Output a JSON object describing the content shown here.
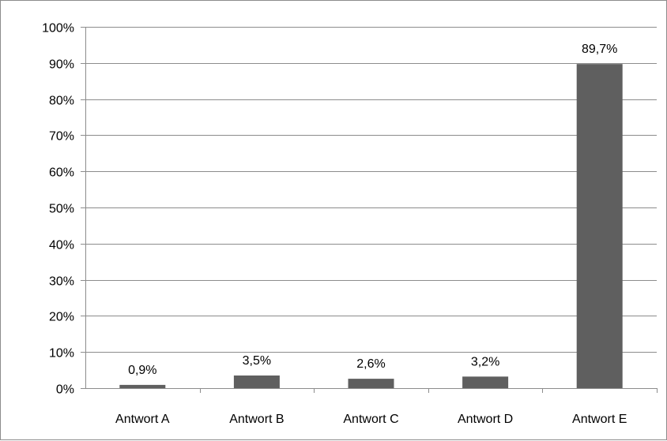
{
  "chart_data": {
    "type": "bar",
    "categories": [
      "Antwort A",
      "Antwort B",
      "Antwort C",
      "Antwort D",
      "Antwort E"
    ],
    "values": [
      0.9,
      3.5,
      2.6,
      3.2,
      89.7
    ],
    "data_labels": [
      "0,9%",
      "3,5%",
      "2,6%",
      "3,2%",
      "89,7%"
    ],
    "y_ticks": [
      0,
      10,
      20,
      30,
      40,
      50,
      60,
      70,
      80,
      90,
      100
    ],
    "y_tick_labels": [
      "0%",
      "10%",
      "20%",
      "30%",
      "40%",
      "50%",
      "60%",
      "70%",
      "80%",
      "90%",
      "100%"
    ],
    "ylim": [
      0,
      100
    ],
    "grid": true,
    "legend": "none",
    "title": "",
    "xlabel": "",
    "ylabel": "",
    "colors": {
      "bar": "#5f5f5f",
      "grid": "#8c8c8c",
      "axis": "#8c8c8c",
      "frame": "#8c8c8c"
    }
  }
}
